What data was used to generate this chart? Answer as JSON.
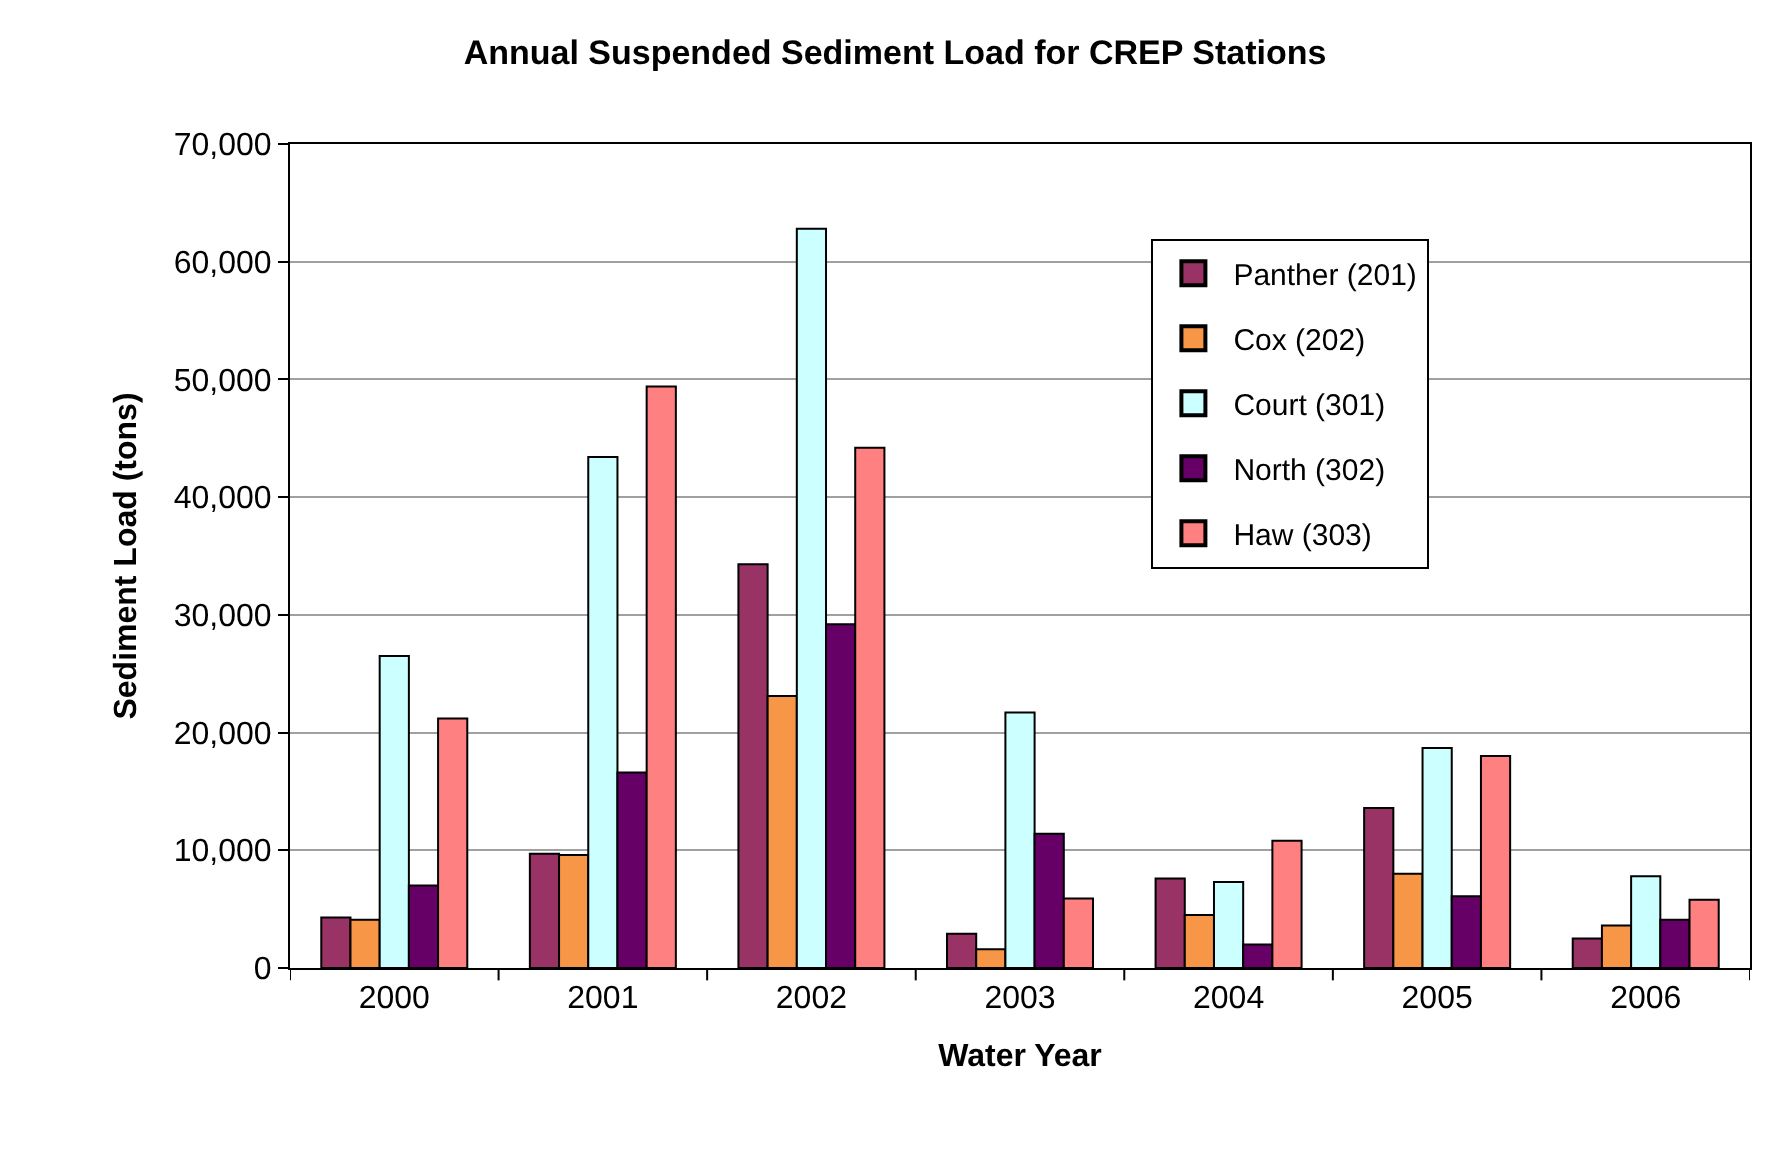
{
  "chart_data": {
    "type": "bar",
    "title": "Annual Suspended Sediment Load for CREP Stations",
    "xlabel": "Water Year",
    "ylabel": "Sediment Load (tons)",
    "categories": [
      "2000",
      "2001",
      "2002",
      "2003",
      "2004",
      "2005",
      "2006"
    ],
    "series": [
      {
        "name": "Panther (201)",
        "color": "#993366",
        "values": [
          4300,
          9700,
          34300,
          2900,
          7600,
          13600,
          2500
        ]
      },
      {
        "name": "Cox (202)",
        "color": "#f79646",
        "values": [
          4100,
          9600,
          23100,
          1600,
          4500,
          8000,
          3600
        ]
      },
      {
        "name": "Court (301)",
        "color": "#ccffff",
        "values": [
          26500,
          43400,
          62800,
          21700,
          7300,
          18700,
          7800
        ]
      },
      {
        "name": "North (302)",
        "color": "#660066",
        "values": [
          7000,
          16600,
          29200,
          11400,
          2000,
          6100,
          4100
        ]
      },
      {
        "name": "Haw (303)",
        "color": "#ff8080",
        "values": [
          21200,
          49400,
          44200,
          5900,
          10800,
          18000,
          5800
        ]
      }
    ],
    "ylim": [
      0,
      70000
    ],
    "yticks": [
      0,
      {
        "value": 10000,
        "label": "10,000"
      },
      {
        "value": 20000,
        "label": "20,000"
      },
      {
        "value": 30000,
        "label": "30,000"
      },
      {
        "value": 40000,
        "label": "40,000"
      },
      {
        "value": 50000,
        "label": "50,000"
      },
      {
        "value": 60000,
        "label": "60,000"
      },
      {
        "value": 70000,
        "label": "70,000"
      }
    ],
    "grid": "y",
    "legend": "top right"
  }
}
